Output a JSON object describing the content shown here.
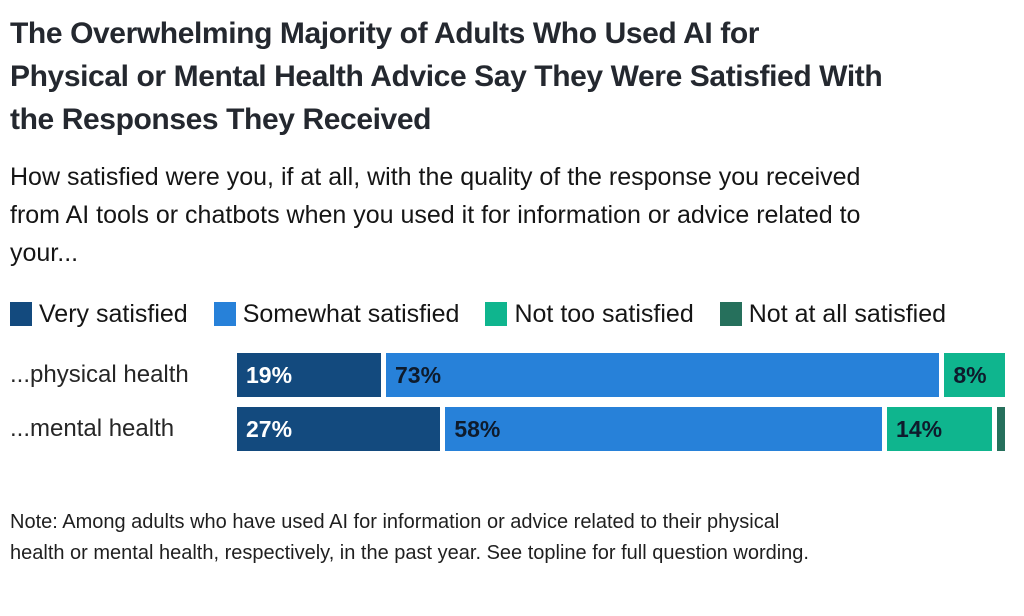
{
  "header": {
    "title_lines": [
      "The Overwhelming Majority of Adults Who Used AI for",
      "Physical or Mental Health Advice Say They Were Satisfied With",
      "the Responses They Received"
    ],
    "subtitle_lines": [
      "How satisfied were you, if at all, with the quality of the response you received",
      "from AI tools or chatbots when you used it for information or advice related to",
      "your..."
    ]
  },
  "chart_data": {
    "type": "bar",
    "orientation": "horizontal",
    "stacked": true,
    "unit": "%",
    "xlim": [
      0,
      100
    ],
    "grid": false,
    "legend_position": "top",
    "categories": [
      "...physical health",
      "...mental health"
    ],
    "series": [
      {
        "name": "Very satisfied",
        "color": "#134A7E",
        "label_color": "#FFFFFF",
        "values": [
          19,
          27
        ]
      },
      {
        "name": "Somewhat satisfied",
        "color": "#2781D9",
        "label_color": "#0E1B2C",
        "values": [
          73,
          58
        ]
      },
      {
        "name": "Not too satisfied",
        "color": "#0FB58E",
        "label_color": "#0E1B2C",
        "values": [
          8,
          14
        ]
      },
      {
        "name": "Not at all satisfied",
        "color": "#26705C",
        "label_color": "#FFFFFF",
        "values": [
          0,
          1
        ]
      }
    ]
  },
  "note_lines": [
    "Note: Among adults who have used AI for information or advice related to their physical",
    "health or mental health, respectively, in the past year. See topline for full question wording."
  ]
}
